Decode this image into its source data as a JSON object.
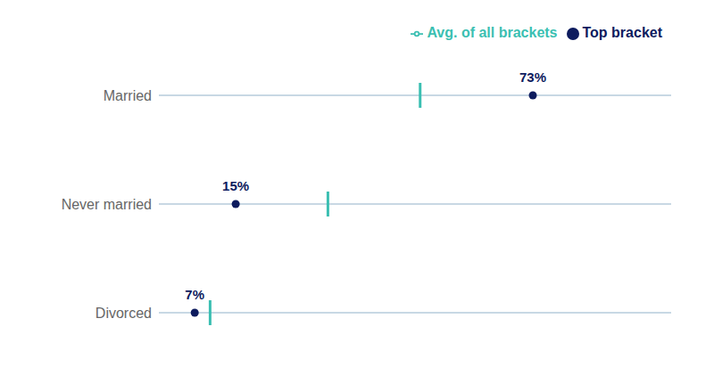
{
  "chart_data": {
    "type": "scatter",
    "categories": [
      "Married",
      "Never married",
      "Divorced"
    ],
    "series": [
      {
        "name": "Top bracket",
        "color": "#0d1b5e",
        "marker": "circle",
        "values": [
          73,
          15,
          7
        ],
        "value_labels": [
          "73%",
          "15%",
          "7%"
        ]
      },
      {
        "name": "Avg. of all brackets",
        "color": "#3bbfb2",
        "marker": "vline",
        "values": [
          51,
          33,
          10
        ]
      }
    ],
    "orientation": "horizontal",
    "xlim": [
      0,
      100
    ],
    "tick_labels": "y",
    "data_labels": true,
    "legend": "upper right"
  }
}
